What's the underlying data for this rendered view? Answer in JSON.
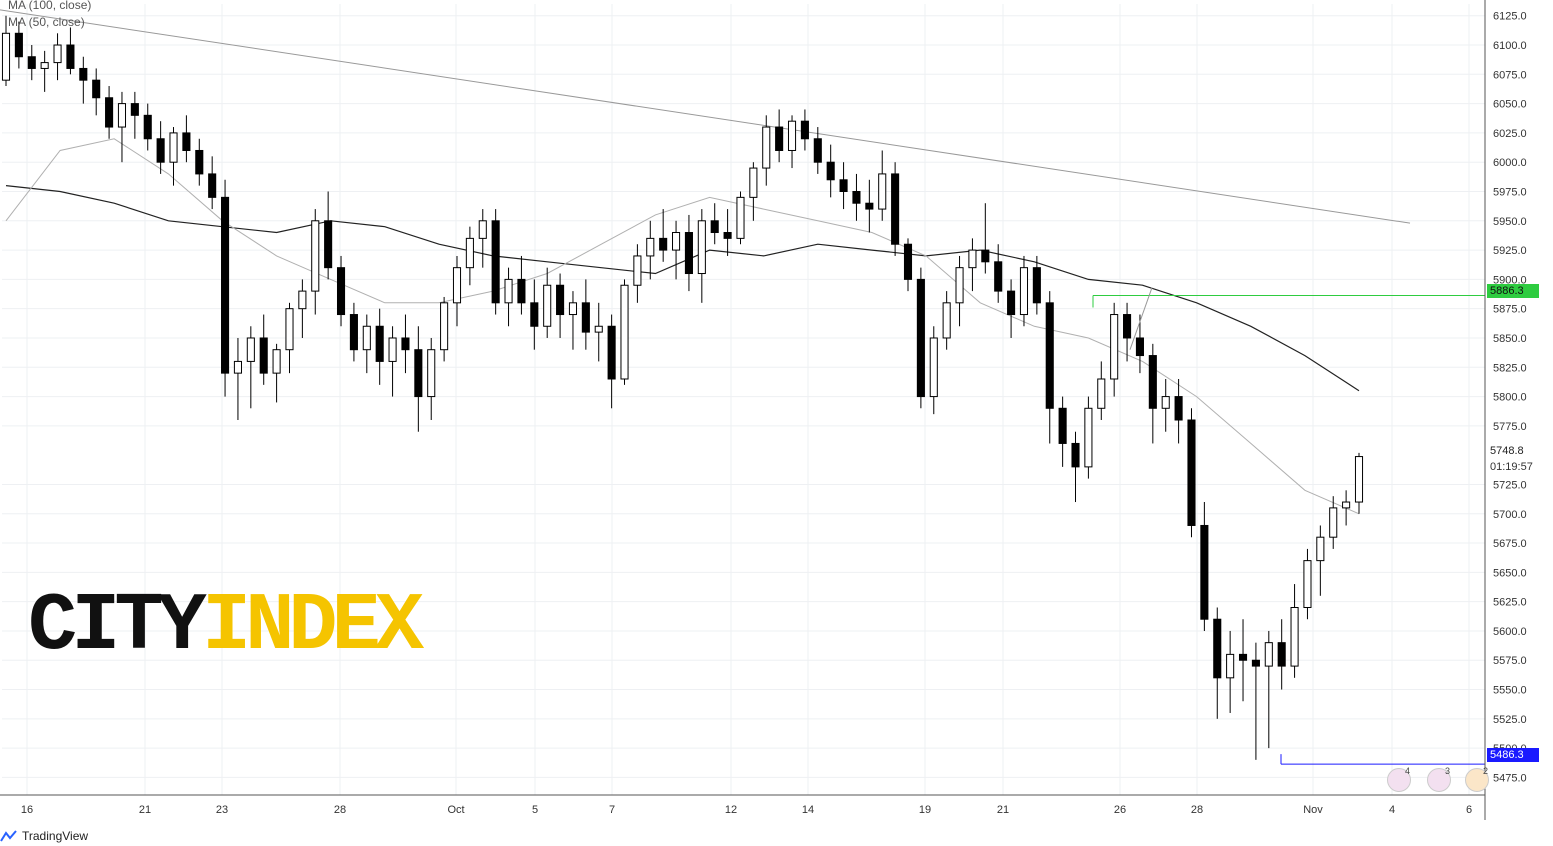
{
  "legend": {
    "ma100": "MA (100, close)",
    "ma50": "MA (50, close)"
  },
  "brand": {
    "tradingview": "TradingView",
    "logo_city": "CITY",
    "logo_index": "INDEX"
  },
  "colors": {
    "candle": "#000000",
    "ma100": "#222222",
    "ma50": "#b0b0b0",
    "trendline": "#999999",
    "resistance": "#2ecc40",
    "support": "#1a1aff",
    "logo_black": "#111111",
    "logo_yellow": "#f5c400"
  },
  "axis": {
    "price_ticks": [
      "6125.0",
      "6100.0",
      "6075.0",
      "6050.0",
      "6025.0",
      "6000.0",
      "5975.0",
      "5950.0",
      "5925.0",
      "5900.0",
      "5875.0",
      "5850.0",
      "5825.0",
      "5800.0",
      "5775.0",
      "5725.0",
      "5700.0",
      "5675.0",
      "5650.0",
      "5625.0",
      "5600.0",
      "5575.0",
      "5550.0",
      "5525.0",
      "5500.0",
      "5475.0"
    ],
    "date_ticks": [
      "16",
      "21",
      "23",
      "28",
      "Oct",
      "5",
      "7",
      "12",
      "14",
      "19",
      "21",
      "26",
      "28",
      "Nov",
      "4",
      "6"
    ]
  },
  "price_labels": {
    "last_price": "5748.8",
    "countdown": "01:19:57",
    "resistance": "5886.3",
    "support": "5486.3"
  },
  "events": {
    "counts": [
      "4",
      "3",
      "2"
    ]
  },
  "chart_data": {
    "type": "candlestick",
    "instrument_note": "",
    "ylim": [
      5460,
      6135
    ],
    "ma100_approx": [
      5980,
      5975,
      5965,
      5950,
      5945,
      5940,
      5950,
      5945,
      5930,
      5920,
      5915,
      5910,
      5905,
      5925,
      5920,
      5930,
      5925,
      5920,
      5925,
      5915,
      5900,
      5895,
      5880,
      5860,
      5835,
      5805
    ],
    "ma50_approx": [
      5950,
      6010,
      6020,
      5990,
      5950,
      5920,
      5900,
      5880,
      5880,
      5890,
      5905,
      5930,
      5955,
      5970,
      5960,
      5950,
      5940,
      5920,
      5880,
      5860,
      5850,
      5830,
      5800,
      5760,
      5720,
      5700
    ],
    "trendline": {
      "from": 6130,
      "to": 5948
    },
    "horizontal_levels": [
      5886.3,
      5486.3
    ],
    "candles": [
      {
        "o": 6070,
        "h": 6125,
        "l": 6065,
        "c": 6110
      },
      {
        "o": 6110,
        "h": 6120,
        "l": 6080,
        "c": 6090
      },
      {
        "o": 6090,
        "h": 6100,
        "l": 6070,
        "c": 6080
      },
      {
        "o": 6080,
        "h": 6095,
        "l": 6060,
        "c": 6085
      },
      {
        "o": 6085,
        "h": 6110,
        "l": 6070,
        "c": 6100
      },
      {
        "o": 6100,
        "h": 6115,
        "l": 6075,
        "c": 6080
      },
      {
        "o": 6080,
        "h": 6090,
        "l": 6050,
        "c": 6070
      },
      {
        "o": 6070,
        "h": 6080,
        "l": 6040,
        "c": 6055
      },
      {
        "o": 6055,
        "h": 6065,
        "l": 6020,
        "c": 6030
      },
      {
        "o": 6030,
        "h": 6060,
        "l": 6000,
        "c": 6050
      },
      {
        "o": 6050,
        "h": 6060,
        "l": 6020,
        "c": 6040
      },
      {
        "o": 6040,
        "h": 6050,
        "l": 6010,
        "c": 6020
      },
      {
        "o": 6020,
        "h": 6035,
        "l": 5990,
        "c": 6000
      },
      {
        "o": 6000,
        "h": 6030,
        "l": 5980,
        "c": 6025
      },
      {
        "o": 6025,
        "h": 6040,
        "l": 6000,
        "c": 6010
      },
      {
        "o": 6010,
        "h": 6020,
        "l": 5980,
        "c": 5990
      },
      {
        "o": 5990,
        "h": 6005,
        "l": 5960,
        "c": 5970
      },
      {
        "o": 5970,
        "h": 5985,
        "l": 5800,
        "c": 5820
      },
      {
        "o": 5820,
        "h": 5850,
        "l": 5780,
        "c": 5830
      },
      {
        "o": 5830,
        "h": 5860,
        "l": 5790,
        "c": 5850
      },
      {
        "o": 5850,
        "h": 5870,
        "l": 5810,
        "c": 5820
      },
      {
        "o": 5820,
        "h": 5845,
        "l": 5795,
        "c": 5840
      },
      {
        "o": 5840,
        "h": 5880,
        "l": 5820,
        "c": 5875
      },
      {
        "o": 5875,
        "h": 5900,
        "l": 5850,
        "c": 5890
      },
      {
        "o": 5890,
        "h": 5960,
        "l": 5870,
        "c": 5950
      },
      {
        "o": 5950,
        "h": 5975,
        "l": 5900,
        "c": 5910
      },
      {
        "o": 5910,
        "h": 5920,
        "l": 5860,
        "c": 5870
      },
      {
        "o": 5870,
        "h": 5880,
        "l": 5830,
        "c": 5840
      },
      {
        "o": 5840,
        "h": 5870,
        "l": 5820,
        "c": 5860
      },
      {
        "o": 5860,
        "h": 5875,
        "l": 5810,
        "c": 5830
      },
      {
        "o": 5830,
        "h": 5860,
        "l": 5800,
        "c": 5850
      },
      {
        "o": 5850,
        "h": 5870,
        "l": 5820,
        "c": 5840
      },
      {
        "o": 5840,
        "h": 5860,
        "l": 5770,
        "c": 5800
      },
      {
        "o": 5800,
        "h": 5850,
        "l": 5780,
        "c": 5840
      },
      {
        "o": 5840,
        "h": 5885,
        "l": 5830,
        "c": 5880
      },
      {
        "o": 5880,
        "h": 5920,
        "l": 5860,
        "c": 5910
      },
      {
        "o": 5910,
        "h": 5945,
        "l": 5895,
        "c": 5935
      },
      {
        "o": 5935,
        "h": 5960,
        "l": 5910,
        "c": 5950
      },
      {
        "o": 5950,
        "h": 5960,
        "l": 5870,
        "c": 5880
      },
      {
        "o": 5880,
        "h": 5910,
        "l": 5860,
        "c": 5900
      },
      {
        "o": 5900,
        "h": 5920,
        "l": 5870,
        "c": 5880
      },
      {
        "o": 5880,
        "h": 5900,
        "l": 5840,
        "c": 5860
      },
      {
        "o": 5860,
        "h": 5910,
        "l": 5850,
        "c": 5895
      },
      {
        "o": 5895,
        "h": 5905,
        "l": 5850,
        "c": 5870
      },
      {
        "o": 5870,
        "h": 5890,
        "l": 5840,
        "c": 5880
      },
      {
        "o": 5880,
        "h": 5900,
        "l": 5840,
        "c": 5855
      },
      {
        "o": 5855,
        "h": 5880,
        "l": 5830,
        "c": 5860
      },
      {
        "o": 5860,
        "h": 5870,
        "l": 5790,
        "c": 5815
      },
      {
        "o": 5815,
        "h": 5900,
        "l": 5810,
        "c": 5895
      },
      {
        "o": 5895,
        "h": 5930,
        "l": 5880,
        "c": 5920
      },
      {
        "o": 5920,
        "h": 5950,
        "l": 5900,
        "c": 5935
      },
      {
        "o": 5935,
        "h": 5960,
        "l": 5915,
        "c": 5925
      },
      {
        "o": 5925,
        "h": 5950,
        "l": 5900,
        "c": 5940
      },
      {
        "o": 5940,
        "h": 5955,
        "l": 5890,
        "c": 5905
      },
      {
        "o": 5905,
        "h": 5960,
        "l": 5880,
        "c": 5950
      },
      {
        "o": 5950,
        "h": 5965,
        "l": 5930,
        "c": 5940
      },
      {
        "o": 5940,
        "h": 5960,
        "l": 5920,
        "c": 5935
      },
      {
        "o": 5935,
        "h": 5975,
        "l": 5930,
        "c": 5970
      },
      {
        "o": 5970,
        "h": 6000,
        "l": 5950,
        "c": 5995
      },
      {
        "o": 5995,
        "h": 6040,
        "l": 5980,
        "c": 6030
      },
      {
        "o": 6030,
        "h": 6045,
        "l": 6000,
        "c": 6010
      },
      {
        "o": 6010,
        "h": 6040,
        "l": 5995,
        "c": 6035
      },
      {
        "o": 6035,
        "h": 6045,
        "l": 6010,
        "c": 6020
      },
      {
        "o": 6020,
        "h": 6030,
        "l": 5990,
        "c": 6000
      },
      {
        "o": 6000,
        "h": 6015,
        "l": 5970,
        "c": 5985
      },
      {
        "o": 5985,
        "h": 6000,
        "l": 5960,
        "c": 5975
      },
      {
        "o": 5975,
        "h": 5990,
        "l": 5950,
        "c": 5965
      },
      {
        "o": 5965,
        "h": 5985,
        "l": 5940,
        "c": 5960
      },
      {
        "o": 5960,
        "h": 6010,
        "l": 5950,
        "c": 5990
      },
      {
        "o": 5990,
        "h": 6000,
        "l": 5920,
        "c": 5930
      },
      {
        "o": 5930,
        "h": 5935,
        "l": 5890,
        "c": 5900
      },
      {
        "o": 5900,
        "h": 5910,
        "l": 5790,
        "c": 5800
      },
      {
        "o": 5800,
        "h": 5860,
        "l": 5785,
        "c": 5850
      },
      {
        "o": 5850,
        "h": 5890,
        "l": 5840,
        "c": 5880
      },
      {
        "o": 5880,
        "h": 5920,
        "l": 5860,
        "c": 5910
      },
      {
        "o": 5910,
        "h": 5935,
        "l": 5890,
        "c": 5925
      },
      {
        "o": 5925,
        "h": 5965,
        "l": 5905,
        "c": 5915
      },
      {
        "o": 5915,
        "h": 5930,
        "l": 5880,
        "c": 5890
      },
      {
        "o": 5890,
        "h": 5900,
        "l": 5850,
        "c": 5870
      },
      {
        "o": 5870,
        "h": 5920,
        "l": 5860,
        "c": 5910
      },
      {
        "o": 5910,
        "h": 5920,
        "l": 5870,
        "c": 5880
      },
      {
        "o": 5880,
        "h": 5890,
        "l": 5760,
        "c": 5790
      },
      {
        "o": 5790,
        "h": 5800,
        "l": 5740,
        "c": 5760
      },
      {
        "o": 5760,
        "h": 5770,
        "l": 5710,
        "c": 5740
      },
      {
        "o": 5740,
        "h": 5800,
        "l": 5730,
        "c": 5790
      },
      {
        "o": 5790,
        "h": 5830,
        "l": 5780,
        "c": 5815
      },
      {
        "o": 5815,
        "h": 5880,
        "l": 5800,
        "c": 5870
      },
      {
        "o": 5870,
        "h": 5880,
        "l": 5830,
        "c": 5850
      },
      {
        "o": 5850,
        "h": 5870,
        "l": 5820,
        "c": 5835
      },
      {
        "o": 5835,
        "h": 5845,
        "l": 5760,
        "c": 5790
      },
      {
        "o": 5790,
        "h": 5815,
        "l": 5770,
        "c": 5800
      },
      {
        "o": 5800,
        "h": 5815,
        "l": 5760,
        "c": 5780
      },
      {
        "o": 5780,
        "h": 5790,
        "l": 5680,
        "c": 5690
      },
      {
        "o": 5690,
        "h": 5710,
        "l": 5600,
        "c": 5610
      },
      {
        "o": 5610,
        "h": 5620,
        "l": 5525,
        "c": 5560
      },
      {
        "o": 5560,
        "h": 5600,
        "l": 5530,
        "c": 5580
      },
      {
        "o": 5580,
        "h": 5610,
        "l": 5540,
        "c": 5575
      },
      {
        "o": 5575,
        "h": 5590,
        "l": 5490,
        "c": 5570
      },
      {
        "o": 5570,
        "h": 5600,
        "l": 5500,
        "c": 5590
      },
      {
        "o": 5590,
        "h": 5610,
        "l": 5550,
        "c": 5570
      },
      {
        "o": 5570,
        "h": 5640,
        "l": 5560,
        "c": 5620
      },
      {
        "o": 5620,
        "h": 5670,
        "l": 5610,
        "c": 5660
      },
      {
        "o": 5660,
        "h": 5690,
        "l": 5630,
        "c": 5680
      },
      {
        "o": 5680,
        "h": 5715,
        "l": 5670,
        "c": 5705
      },
      {
        "o": 5705,
        "h": 5720,
        "l": 5690,
        "c": 5710
      },
      {
        "o": 5710,
        "h": 5752,
        "l": 5700,
        "c": 5748.8
      }
    ]
  }
}
